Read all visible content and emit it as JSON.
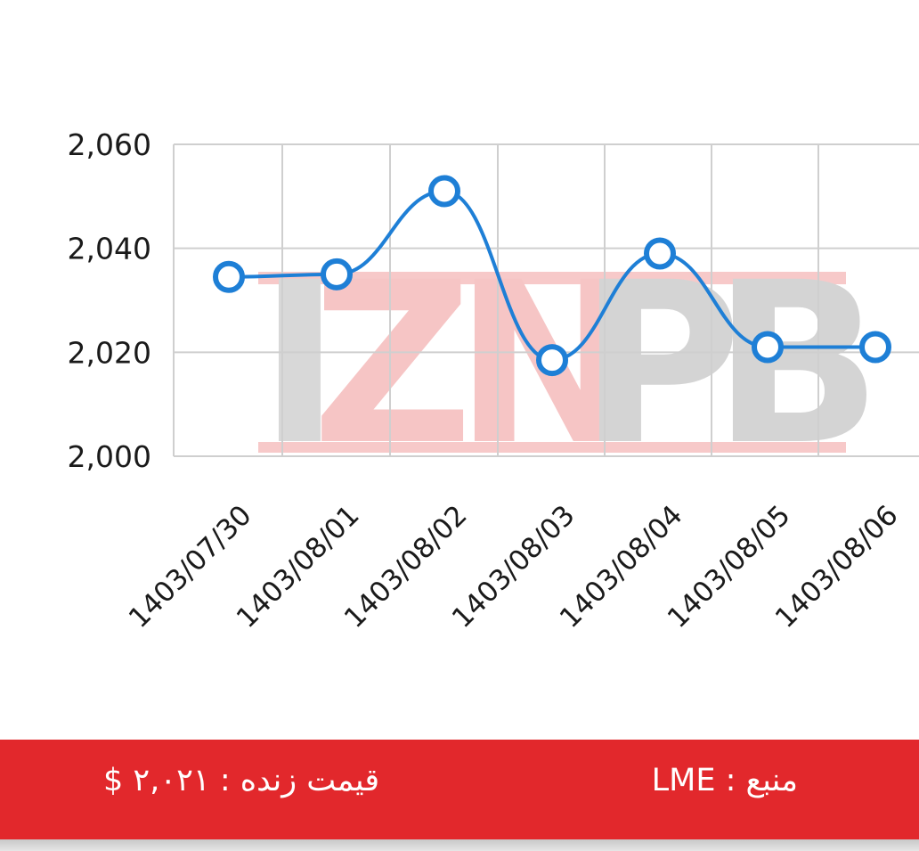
{
  "chart_data": {
    "type": "line",
    "title": "",
    "xlabel": "",
    "ylabel": "",
    "categories": [
      "1403/07/30",
      "1403/08/01",
      "1403/08/02",
      "1403/08/03",
      "1403/08/04",
      "1403/08/05",
      "1403/08/06"
    ],
    "series": [
      {
        "values": [
          2034.5,
          2035,
          2051,
          2018.5,
          2039,
          2021,
          2021
        ]
      }
    ],
    "ylim": [
      2000,
      2060
    ],
    "yticks": [
      "2,000",
      "2,020",
      "2,040",
      "2,060"
    ],
    "grid": true,
    "line_color": "#1e7fd6",
    "smooth": true
  },
  "watermark": {
    "text": "IZNPB"
  },
  "footer": {
    "price_label": "قیمت زنده : ۲,۰۲۱ $",
    "source_label": "منبع : LME",
    "background_color": "#e2282c"
  }
}
